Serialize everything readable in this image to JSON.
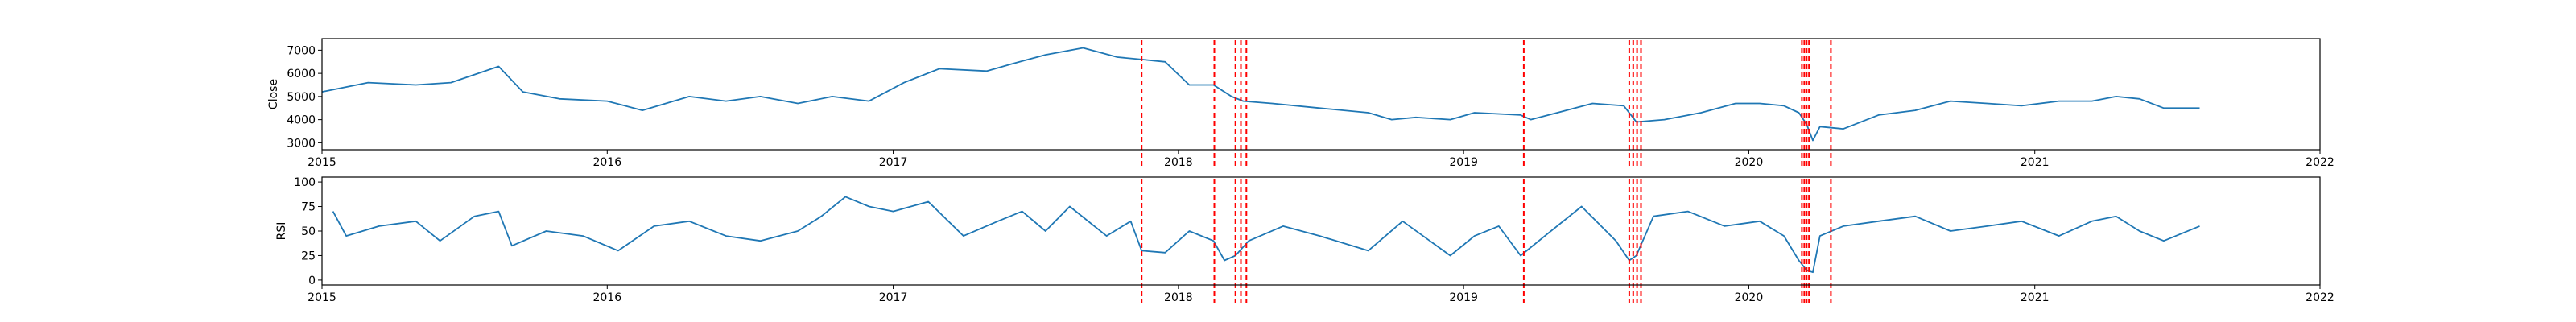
{
  "colors": {
    "series": "#1f77b4",
    "signal": "#ff0000",
    "axis": "#000000",
    "background": "#ffffff"
  },
  "chart_data": [
    {
      "type": "line",
      "ylabel": "Close",
      "xlim": [
        "2015-01-01",
        "2022-01-01"
      ],
      "ylim": [
        2700,
        7500
      ],
      "xticks": [
        "2015",
        "2016",
        "2017",
        "2018",
        "2019",
        "2020",
        "2021",
        "2022"
      ],
      "yticks": [
        3000,
        4000,
        5000,
        6000,
        7000
      ],
      "grid": false,
      "series": [
        {
          "x": [
            "2015-01-01",
            "2015-03-01",
            "2015-05-01",
            "2015-06-15",
            "2015-08-15",
            "2015-09-15",
            "2015-11-01",
            "2016-01-01",
            "2016-02-15",
            "2016-04-15",
            "2016-06-01",
            "2016-07-15",
            "2016-09-01",
            "2016-10-15",
            "2016-12-01",
            "2017-01-15",
            "2017-03-01",
            "2017-05-01",
            "2017-06-01",
            "2017-07-15",
            "2017-09-01",
            "2017-10-15",
            "2017-11-15",
            "2017-12-15",
            "2018-01-15",
            "2018-02-15",
            "2018-03-10",
            "2018-03-25",
            "2018-05-01",
            "2018-07-01",
            "2018-09-01",
            "2018-10-01",
            "2018-11-01",
            "2018-12-15",
            "2019-01-15",
            "2019-03-15",
            "2019-03-28",
            "2019-05-01",
            "2019-06-15",
            "2019-07-25",
            "2019-08-10",
            "2019-09-15",
            "2019-11-01",
            "2019-12-15",
            "2020-01-15",
            "2020-02-15",
            "2020-03-05",
            "2020-03-15",
            "2020-03-23",
            "2020-04-01",
            "2020-05-01",
            "2020-06-15",
            "2020-08-01",
            "2020-09-15",
            "2020-11-01",
            "2020-12-15",
            "2021-02-01",
            "2021-03-15",
            "2021-04-15",
            "2021-05-15",
            "2021-06-15",
            "2021-07-31"
          ],
          "y": [
            5200,
            5600,
            5500,
            5600,
            6300,
            5200,
            4900,
            4800,
            4400,
            5000,
            4800,
            5000,
            4700,
            5000,
            4800,
            5600,
            6200,
            6100,
            6400,
            6800,
            7100,
            6700,
            6600,
            6500,
            5500,
            5500,
            5000,
            4800,
            4700,
            4500,
            4300,
            4000,
            4100,
            4000,
            4300,
            4200,
            4000,
            4300,
            4700,
            4600,
            3900,
            4000,
            4300,
            4700,
            4700,
            4600,
            4300,
            3800,
            3100,
            3700,
            3600,
            4200,
            4400,
            4800,
            4700,
            4600,
            4800,
            4800,
            5000,
            4900,
            4500,
            4500
          ]
        }
      ]
    },
    {
      "type": "line",
      "ylabel": "RSI",
      "xlim": [
        "2015-01-01",
        "2022-01-01"
      ],
      "ylim": [
        -5,
        105
      ],
      "xticks": [
        "2015",
        "2016",
        "2017",
        "2018",
        "2019",
        "2020",
        "2021",
        "2022"
      ],
      "yticks": [
        0,
        25,
        50,
        75,
        100
      ],
      "grid": false,
      "series": [
        {
          "x": [
            "2015-01-15",
            "2015-02-01",
            "2015-03-15",
            "2015-05-01",
            "2015-06-01",
            "2015-07-15",
            "2015-08-15",
            "2015-09-01",
            "2015-10-15",
            "2015-12-01",
            "2016-01-15",
            "2016-03-01",
            "2016-04-15",
            "2016-06-01",
            "2016-07-15",
            "2016-09-01",
            "2016-10-01",
            "2016-11-01",
            "2016-12-01",
            "2017-01-01",
            "2017-02-15",
            "2017-04-01",
            "2017-05-15",
            "2017-06-15",
            "2017-07-15",
            "2017-08-15",
            "2017-10-01",
            "2017-11-01",
            "2017-11-15",
            "2017-12-15",
            "2018-01-15",
            "2018-02-15",
            "2018-03-01",
            "2018-03-15",
            "2018-04-01",
            "2018-05-15",
            "2018-07-01",
            "2018-09-01",
            "2018-10-15",
            "2018-12-15",
            "2019-01-15",
            "2019-02-15",
            "2019-03-15",
            "2019-04-15",
            "2019-06-01",
            "2019-07-15",
            "2019-08-01",
            "2019-08-10",
            "2019-09-01",
            "2019-10-15",
            "2019-12-01",
            "2020-01-15",
            "2020-02-15",
            "2020-03-05",
            "2020-03-15",
            "2020-03-23",
            "2020-04-01",
            "2020-05-01",
            "2020-06-15",
            "2020-08-01",
            "2020-09-15",
            "2020-11-01",
            "2020-12-15",
            "2021-02-01",
            "2021-03-15",
            "2021-04-15",
            "2021-05-15",
            "2021-06-15",
            "2021-07-31"
          ],
          "y": [
            70,
            45,
            55,
            60,
            40,
            65,
            70,
            35,
            50,
            45,
            30,
            55,
            60,
            45,
            40,
            50,
            65,
            85,
            75,
            70,
            80,
            45,
            60,
            70,
            50,
            75,
            45,
            60,
            30,
            28,
            50,
            40,
            20,
            25,
            40,
            55,
            45,
            30,
            60,
            25,
            45,
            55,
            25,
            45,
            75,
            40,
            20,
            25,
            65,
            70,
            55,
            60,
            45,
            20,
            10,
            8,
            45,
            55,
            60,
            65,
            50,
            55,
            60,
            45,
            60,
            65,
            50,
            40,
            55
          ]
        }
      ]
    }
  ],
  "signal_lines": [
    "2017-11-15",
    "2018-02-16",
    "2018-03-15",
    "2018-03-22",
    "2018-03-29",
    "2019-03-19",
    "2019-08-01",
    "2019-08-06",
    "2019-08-11",
    "2019-08-16",
    "2020-03-09",
    "2020-03-12",
    "2020-03-15",
    "2020-03-18",
    "2020-04-15"
  ]
}
